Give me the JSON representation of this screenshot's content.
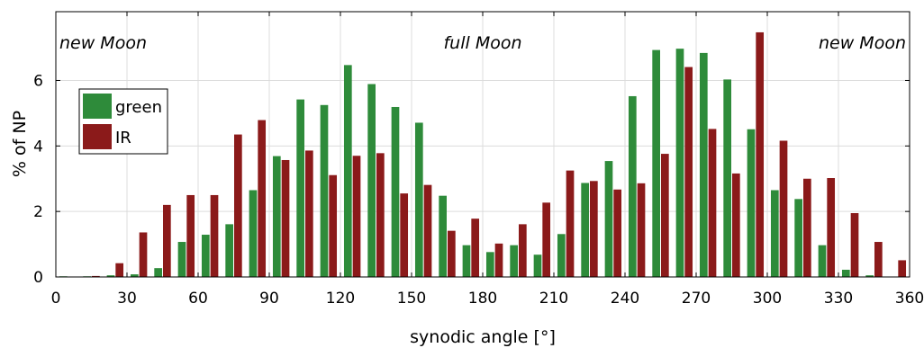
{
  "chart_data": {
    "type": "bar",
    "xlabel": "synodic angle [°]",
    "ylabel": "% of NP",
    "xlim": [
      0,
      360
    ],
    "ylim": [
      0,
      8.1
    ],
    "xticks": [
      0,
      30,
      60,
      90,
      120,
      150,
      180,
      210,
      240,
      270,
      300,
      330,
      360
    ],
    "yticks": [
      0,
      2,
      4,
      6
    ],
    "grid": true,
    "legend_position": "upper-left",
    "annotations": [
      {
        "text": "new Moon",
        "x": 0,
        "anchor": "start"
      },
      {
        "text": "full Moon",
        "x": 180,
        "anchor": "middle"
      },
      {
        "text": "new Moon",
        "x": 360,
        "anchor": "end"
      }
    ],
    "x": [
      5,
      15,
      25,
      35,
      45,
      55,
      65,
      75,
      85,
      95,
      105,
      115,
      125,
      135,
      145,
      155,
      165,
      175,
      185,
      195,
      205,
      215,
      225,
      235,
      245,
      255,
      265,
      275,
      285,
      295,
      305,
      315,
      325,
      335,
      345,
      355
    ],
    "series": [
      {
        "name": "green",
        "color": "#2e8b3a",
        "values": [
          0.02,
          0.02,
          0.05,
          0.08,
          0.27,
          1.07,
          1.29,
          1.61,
          2.65,
          3.69,
          5.42,
          5.25,
          6.47,
          5.89,
          5.19,
          4.71,
          2.48,
          0.97,
          0.76,
          0.97,
          0.68,
          1.31,
          2.87,
          3.54,
          5.52,
          6.93,
          6.97,
          6.84,
          6.03,
          4.51,
          2.65,
          2.38,
          0.97,
          0.22,
          0.05,
          0.0
        ]
      },
      {
        "name": "IR",
        "color": "#8b1a1a",
        "values": [
          0.0,
          0.03,
          0.42,
          1.36,
          2.2,
          2.5,
          2.5,
          4.35,
          4.79,
          3.57,
          3.86,
          3.11,
          3.7,
          3.78,
          2.55,
          2.81,
          1.41,
          1.78,
          1.02,
          1.61,
          2.27,
          3.25,
          2.93,
          2.67,
          2.86,
          3.76,
          6.41,
          4.52,
          3.16,
          7.47,
          4.16,
          3.0,
          3.02,
          1.95,
          1.07,
          0.51
        ]
      }
    ]
  }
}
